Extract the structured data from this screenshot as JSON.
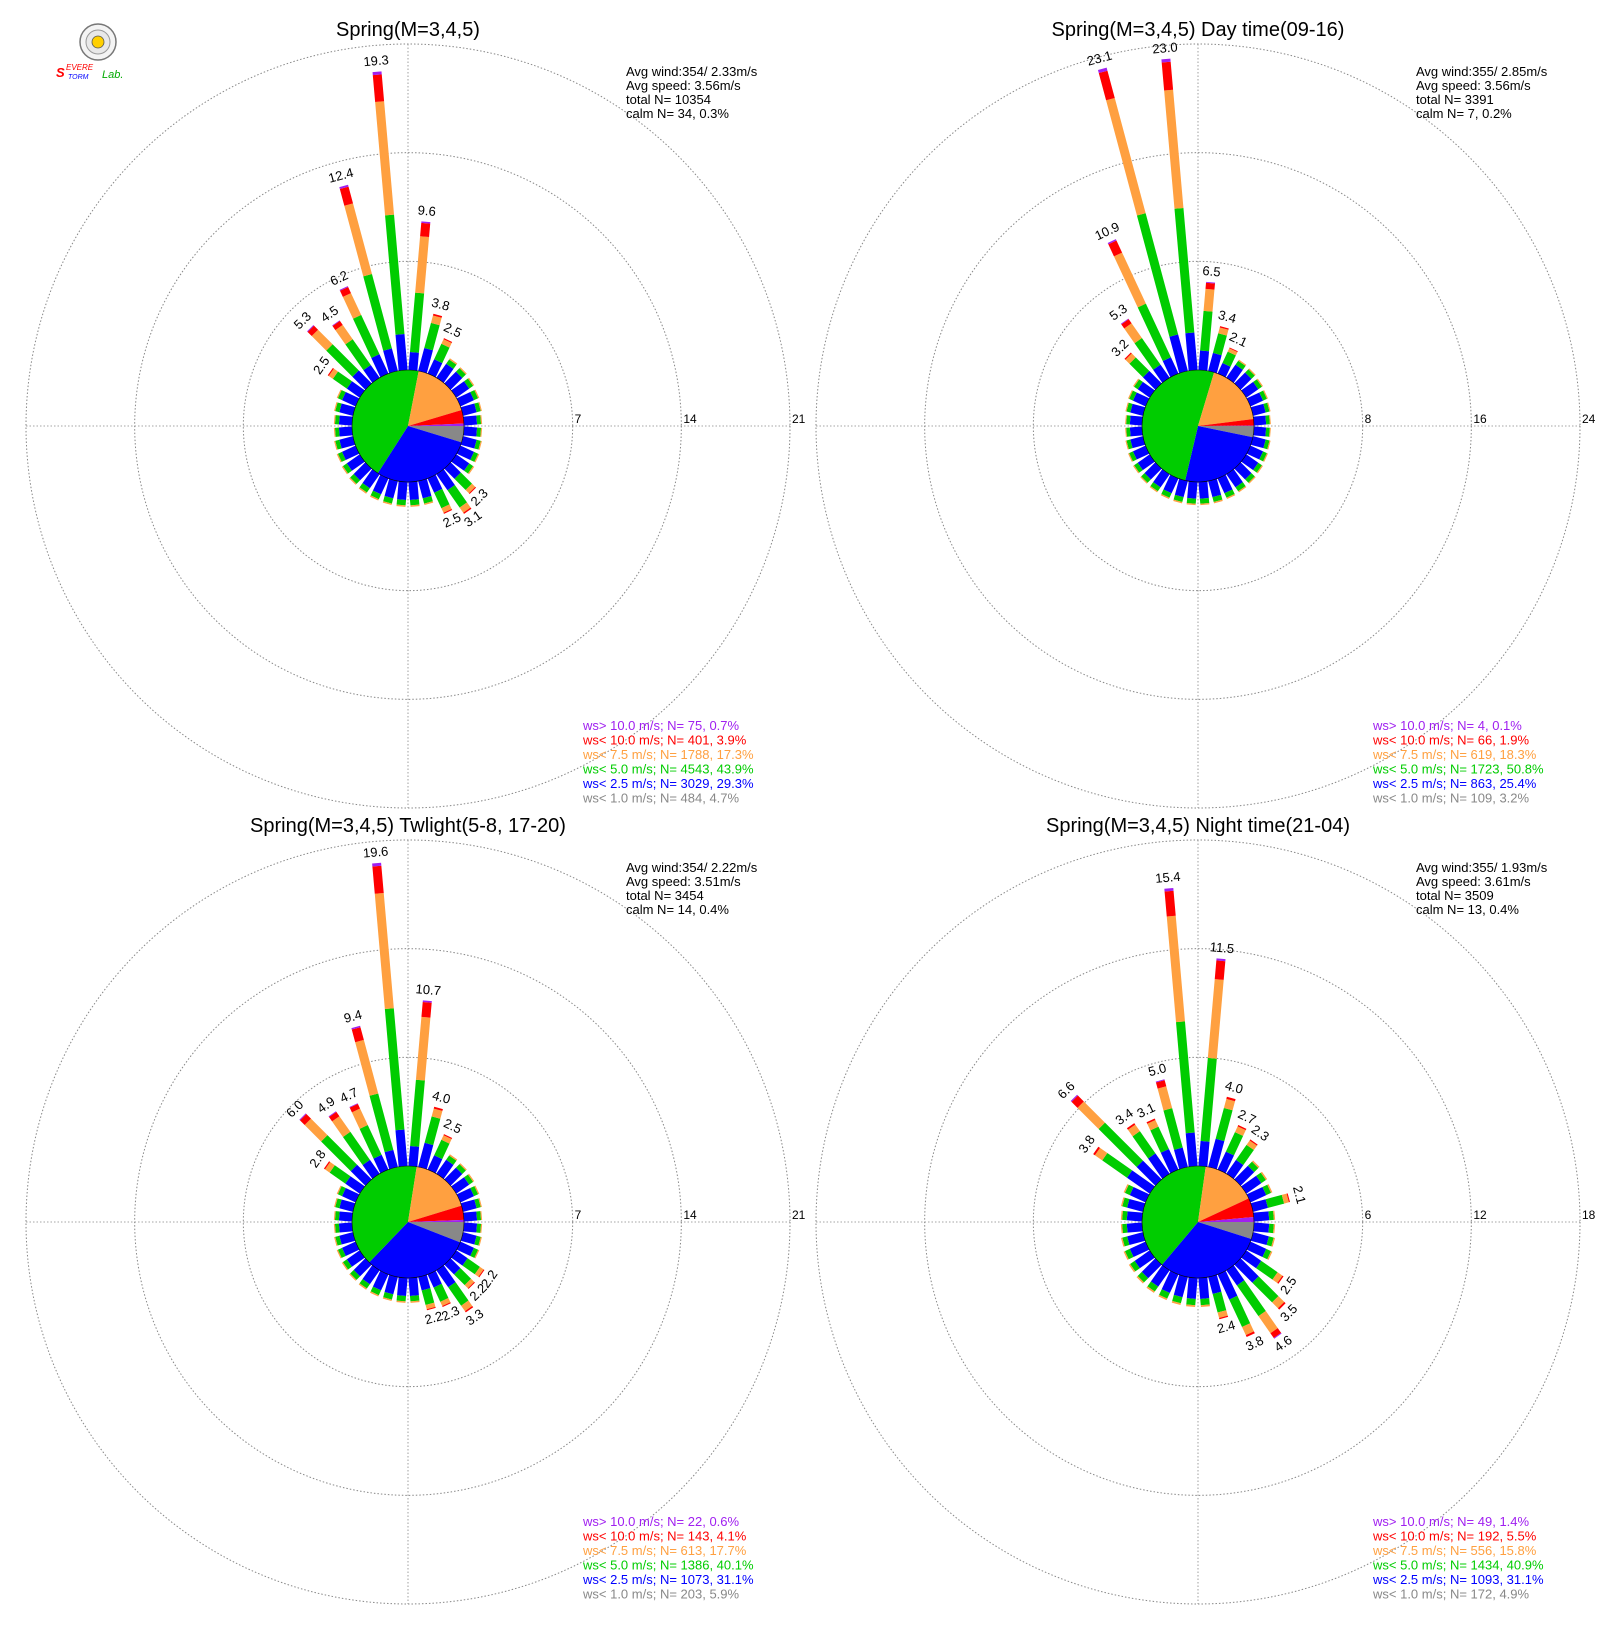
{
  "colors": {
    "ws_gt_10": "#a020f0",
    "ws_lt_10": "#ff0000",
    "ws_lt_7_5": "#ffa040",
    "ws_lt_5": "#00cc00",
    "ws_lt_2_5": "#0000ff",
    "ws_lt_1": "#888888",
    "grid": "#888888"
  },
  "logo": {
    "text_top": "SEVERE",
    "text_bottom": "STORM",
    "text_lab": "Lab."
  },
  "chart_data": [
    {
      "type": "polar-bar",
      "title": "Spring(M=3,4,5)",
      "rings": [
        7,
        14,
        21
      ],
      "rmax": 21,
      "stats": [
        "Avg wind:354/ 2.33m/s",
        "Avg speed: 3.56m/s",
        "total N=      10354",
        "calm N=     34,   0.3%"
      ],
      "legend": [
        "ws> 10.0 m/s; N=    75,  0.7%",
        "ws< 10.0 m/s; N=   401,  3.9%",
        "ws<  7.5 m/s; N=  1788, 17.3%",
        "ws<  5.0 m/s; N=  4543, 43.9%",
        "ws<  2.5 m/s; N=  3029, 29.3%",
        "ws<  1.0 m/s; N=   484,  4.7%"
      ],
      "pie": [
        4.7,
        29.3,
        43.9,
        17.3,
        3.9,
        0.7
      ],
      "bars": [
        {
          "dir": 355,
          "total": 19.3,
          "label": "19.3"
        },
        {
          "dir": 345,
          "total": 12.4,
          "label": "12.4"
        },
        {
          "dir": 5,
          "total": 9.6,
          "label": "9.6"
        },
        {
          "dir": 335,
          "total": 6.2,
          "label": "6.2"
        },
        {
          "dir": 325,
          "total": 4.5,
          "label": "4.5"
        },
        {
          "dir": 315,
          "total": 5.3,
          "label": "5.3"
        },
        {
          "dir": 305,
          "total": 2.5,
          "label": "2.5"
        },
        {
          "dir": 15,
          "total": 3.8,
          "label": "3.8"
        },
        {
          "dir": 25,
          "total": 2.5,
          "label": "2.5"
        },
        {
          "dir": 135,
          "total": 2.3,
          "label": "2.3"
        },
        {
          "dir": 145,
          "total": 3.1,
          "label": "3.1"
        },
        {
          "dir": 155,
          "total": 2.5,
          "label": "2.5"
        }
      ],
      "base_total": 1.6
    },
    {
      "type": "polar-bar",
      "title": "Spring(M=3,4,5) Day time(09-16)",
      "rings": [
        8,
        16,
        24
      ],
      "rmax": 24,
      "stats": [
        "Avg wind:355/ 2.85m/s",
        "Avg speed: 3.56m/s",
        "total N=       3391",
        "calm N=      7,   0.2%"
      ],
      "legend": [
        "ws> 10.0 m/s; N=     4,  0.1%",
        "ws< 10.0 m/s; N=    66,  1.9%",
        "ws<  7.5 m/s; N=   619, 18.3%",
        "ws<  5.0 m/s; N=  1723, 50.8%",
        "ws<  2.5 m/s; N=   863, 25.4%",
        "ws<  1.0 m/s; N=   109,  3.2%"
      ],
      "pie": [
        3.2,
        25.4,
        50.8,
        18.3,
        1.9,
        0.1
      ],
      "bars": [
        {
          "dir": 345,
          "total": 23.1,
          "label": "23.1"
        },
        {
          "dir": 355,
          "total": 23.0,
          "label": "23.0"
        },
        {
          "dir": 335,
          "total": 10.9,
          "label": "10.9"
        },
        {
          "dir": 325,
          "total": 5.3,
          "label": "5.3"
        },
        {
          "dir": 315,
          "total": 3.2,
          "label": "3.2"
        },
        {
          "dir": 5,
          "total": 6.5,
          "label": "6.5"
        },
        {
          "dir": 15,
          "total": 3.4,
          "label": "3.4"
        },
        {
          "dir": 25,
          "total": 2.1,
          "label": "2.1"
        }
      ],
      "base_total": 1.7
    },
    {
      "type": "polar-bar",
      "title": "Spring(M=3,4,5) Twlight(5-8, 17-20)",
      "rings": [
        7,
        14,
        21
      ],
      "rmax": 21,
      "stats": [
        "Avg wind:354/ 2.22m/s",
        "Avg speed: 3.51m/s",
        "total N=       3454",
        "calm N=     14,   0.4%"
      ],
      "legend": [
        "ws> 10.0 m/s; N=    22,  0.6%",
        "ws< 10.0 m/s; N=   143,  4.1%",
        "ws<  7.5 m/s; N=   613, 17.7%",
        "ws<  5.0 m/s; N=  1386, 40.1%",
        "ws<  2.5 m/s; N=  1073, 31.1%",
        "ws<  1.0 m/s; N=   203,  5.9%"
      ],
      "pie": [
        5.9,
        31.1,
        40.1,
        17.7,
        4.1,
        0.6
      ],
      "bars": [
        {
          "dir": 355,
          "total": 19.6,
          "label": "19.6"
        },
        {
          "dir": 5,
          "total": 10.7,
          "label": "10.7"
        },
        {
          "dir": 345,
          "total": 9.4,
          "label": "9.4"
        },
        {
          "dir": 335,
          "total": 4.7,
          "label": "4.7"
        },
        {
          "dir": 325,
          "total": 4.9,
          "label": "4.9"
        },
        {
          "dir": 315,
          "total": 6.0,
          "label": "6.0"
        },
        {
          "dir": 305,
          "total": 2.8,
          "label": "2.8"
        },
        {
          "dir": 15,
          "total": 4.0,
          "label": "4.0"
        },
        {
          "dir": 25,
          "total": 2.5,
          "label": "2.5"
        },
        {
          "dir": 125,
          "total": 2.2,
          "label": "2.2"
        },
        {
          "dir": 135,
          "total": 2.2,
          "label": "2.2"
        },
        {
          "dir": 145,
          "total": 3.3,
          "label": "3.3"
        },
        {
          "dir": 155,
          "total": 2.3,
          "label": "2.3"
        },
        {
          "dir": 165,
          "total": 2.2,
          "label": "2.2"
        }
      ],
      "base_total": 1.6
    },
    {
      "type": "polar-bar",
      "title": "Spring(M=3,4,5) Night time(21-04)",
      "rings": [
        6,
        12,
        18
      ],
      "rmax": 18,
      "stats": [
        "Avg wind:355/ 1.93m/s",
        "Avg speed: 3.61m/s",
        "total N=       3509",
        "calm N=     13,   0.4%"
      ],
      "legend": [
        "ws> 10.0 m/s; N=    49,  1.4%",
        "ws< 10.0 m/s; N=   192,  5.5%",
        "ws<  7.5 m/s; N=   556, 15.8%",
        "ws<  5.0 m/s; N=  1434, 40.9%",
        "ws<  2.5 m/s; N=  1093, 31.1%",
        "ws<  1.0 m/s; N=   172,  4.9%"
      ],
      "pie": [
        4.9,
        31.1,
        40.9,
        15.8,
        5.5,
        1.4
      ],
      "bars": [
        {
          "dir": 355,
          "total": 15.4,
          "label": "15.4"
        },
        {
          "dir": 5,
          "total": 11.5,
          "label": "11.5"
        },
        {
          "dir": 345,
          "total": 5.0,
          "label": "5.0"
        },
        {
          "dir": 335,
          "total": 3.1,
          "label": "3.1"
        },
        {
          "dir": 325,
          "total": 3.4,
          "label": "3.4"
        },
        {
          "dir": 315,
          "total": 6.6,
          "label": "6.6"
        },
        {
          "dir": 305,
          "total": 3.8,
          "label": "3.8"
        },
        {
          "dir": 15,
          "total": 4.0,
          "label": "4.0"
        },
        {
          "dir": 25,
          "total": 2.7,
          "label": "2.7"
        },
        {
          "dir": 35,
          "total": 2.3,
          "label": "2.3"
        },
        {
          "dir": 75,
          "total": 2.1,
          "label": "2.1"
        },
        {
          "dir": 125,
          "total": 2.5,
          "label": "2.5"
        },
        {
          "dir": 135,
          "total": 3.5,
          "label": "3.5"
        },
        {
          "dir": 145,
          "total": 4.6,
          "label": "4.6"
        },
        {
          "dir": 155,
          "total": 3.8,
          "label": "3.8"
        },
        {
          "dir": 165,
          "total": 2.4,
          "label": "2.4"
        }
      ],
      "base_total": 1.6
    }
  ]
}
